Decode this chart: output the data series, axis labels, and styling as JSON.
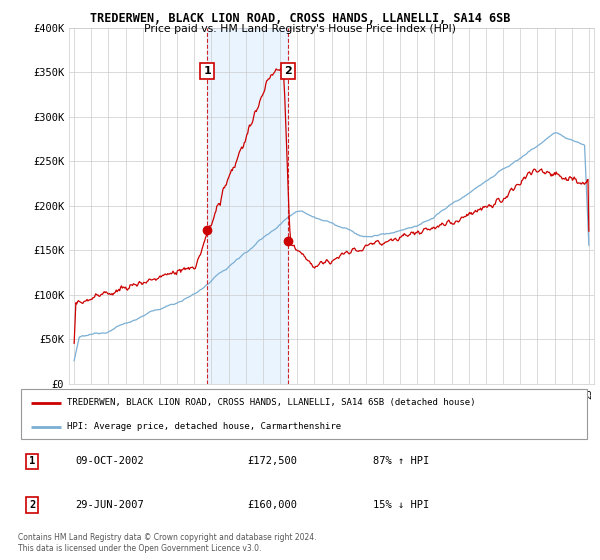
{
  "title": "TREDERWEN, BLACK LION ROAD, CROSS HANDS, LLANELLI, SA14 6SB",
  "subtitle": "Price paid vs. HM Land Registry's House Price Index (HPI)",
  "legend_line1": "TREDERWEN, BLACK LION ROAD, CROSS HANDS, LLANELLI, SA14 6SB (detached house)",
  "legend_line2": "HPI: Average price, detached house, Carmarthenshire",
  "annotation1_date": "09-OCT-2002",
  "annotation1_price": "£172,500",
  "annotation1_hpi": "87% ↑ HPI",
  "annotation2_date": "29-JUN-2007",
  "annotation2_price": "£160,000",
  "annotation2_hpi": "15% ↓ HPI",
  "footer": "Contains HM Land Registry data © Crown copyright and database right 2024.\nThis data is licensed under the Open Government Licence v3.0.",
  "hpi_color": "#7bafd4",
  "price_color": "#cc0000",
  "vline_color": "#cc0000",
  "highlight_color": "#ddeeff",
  "ylim": [
    0,
    400000
  ],
  "yticks": [
    0,
    50000,
    100000,
    150000,
    200000,
    250000,
    300000,
    350000,
    400000
  ],
  "ytick_labels": [
    "£0",
    "£50K",
    "£100K",
    "£150K",
    "£200K",
    "£250K",
    "£300K",
    "£350K",
    "£400K"
  ],
  "sale1_x": 2002.77,
  "sale1_y": 172500,
  "sale2_x": 2007.49,
  "sale2_y": 160000,
  "xlim": [
    1994.7,
    2025.3
  ]
}
